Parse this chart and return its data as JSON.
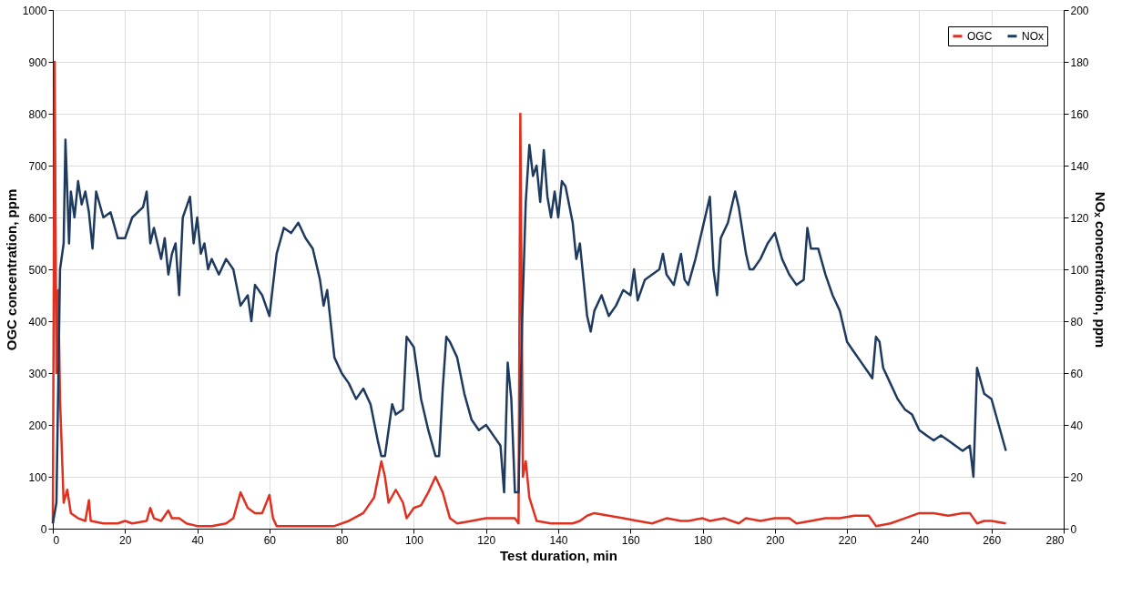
{
  "chart_data": {
    "type": "line",
    "xlabel": "Test duration, min",
    "ylabel": "OGC concentration, ppm",
    "y2label": "NOₓ concentration, ppm",
    "xlim": [
      0,
      280
    ],
    "xticks": [
      0,
      20,
      40,
      60,
      80,
      100,
      120,
      140,
      160,
      180,
      200,
      220,
      240,
      260,
      280
    ],
    "ylim": [
      0,
      1000
    ],
    "yticks": [
      0,
      100,
      200,
      300,
      400,
      500,
      600,
      700,
      800,
      900,
      1000
    ],
    "y2lim": [
      0,
      200
    ],
    "y2ticks": [
      0,
      20,
      40,
      60,
      80,
      100,
      120,
      140,
      160,
      180,
      200
    ],
    "grid": true,
    "legend": "top right",
    "marker": "none",
    "line_style": "solid",
    "series": [
      {
        "name": "OGC",
        "color": "#e03020",
        "x": [
          0,
          0.5,
          1,
          1.5,
          2,
          3,
          4,
          5,
          7,
          9,
          10,
          10.5,
          14,
          18,
          20,
          22,
          26,
          27,
          28,
          30,
          32,
          33,
          35,
          37,
          40,
          44,
          48,
          50,
          52,
          54,
          56,
          58,
          60,
          61,
          62,
          70,
          78,
          82,
          86,
          89,
          91,
          92,
          93,
          95,
          97,
          98,
          100,
          102,
          104,
          106,
          108,
          110,
          112,
          116,
          120,
          124,
          128,
          129,
          129.5,
          130.2,
          131,
          132,
          134,
          138,
          144,
          146,
          148,
          150,
          154,
          158,
          162,
          166,
          170,
          174,
          176,
          180,
          182,
          186,
          190,
          192,
          196,
          200,
          204,
          206,
          210,
          214,
          218,
          222,
          226,
          228,
          232,
          236,
          240,
          244,
          248,
          252,
          254,
          256,
          258,
          260,
          264
        ],
        "values": [
          10,
          900,
          300,
          460,
          250,
          50,
          75,
          30,
          20,
          15,
          55,
          15,
          10,
          10,
          15,
          10,
          15,
          40,
          20,
          15,
          35,
          20,
          20,
          10,
          5,
          5,
          10,
          20,
          70,
          40,
          30,
          30,
          65,
          20,
          5,
          5,
          5,
          15,
          30,
          60,
          130,
          100,
          50,
          75,
          50,
          20,
          40,
          45,
          70,
          100,
          70,
          20,
          10,
          15,
          20,
          20,
          20,
          10,
          800,
          100,
          130,
          60,
          15,
          10,
          10,
          15,
          25,
          30,
          25,
          20,
          15,
          10,
          20,
          15,
          15,
          20,
          15,
          20,
          10,
          20,
          15,
          20,
          20,
          10,
          15,
          20,
          20,
          25,
          25,
          5,
          10,
          20,
          30,
          30,
          25,
          30,
          30,
          10,
          15,
          15,
          10
        ]
      },
      {
        "name": "NOx",
        "color": "#1f3a5f",
        "axis": "y2",
        "x": [
          0,
          1,
          2,
          3,
          3.5,
          4.5,
          5,
          6,
          7,
          8,
          9,
          10,
          11,
          12,
          14,
          16,
          18,
          20,
          22,
          25,
          26,
          27,
          28,
          30,
          31,
          32,
          33,
          34,
          35,
          36,
          37,
          38,
          39,
          40,
          41,
          42,
          43,
          44,
          46,
          48,
          50,
          52,
          54,
          55,
          56,
          58,
          60,
          62,
          64,
          66,
          68,
          70,
          72,
          74,
          75,
          76,
          78,
          80,
          82,
          84,
          86,
          88,
          90,
          91,
          92,
          94,
          95,
          97,
          98,
          100,
          102,
          104,
          106,
          107,
          108,
          109,
          110,
          112,
          114,
          116,
          118,
          120,
          122,
          124,
          125,
          126,
          127,
          128,
          129,
          130,
          131,
          132,
          133,
          134,
          135,
          136,
          137,
          138,
          139,
          140,
          141,
          142,
          144,
          145,
          146,
          147,
          148,
          149,
          150,
          152,
          154,
          156,
          158,
          160,
          161,
          162,
          164,
          166,
          168,
          169,
          170,
          172,
          174,
          175,
          176,
          178,
          180,
          182,
          183,
          184,
          185,
          187,
          189,
          190,
          192,
          193,
          194,
          196,
          198,
          200,
          202,
          204,
          206,
          208,
          209,
          210,
          212,
          214,
          216,
          218,
          220,
          221,
          222,
          224,
          226,
          227,
          228,
          229,
          230,
          232,
          234,
          236,
          238,
          240,
          242,
          244,
          246,
          248,
          250,
          252,
          254,
          255,
          256,
          258,
          260,
          262,
          264
        ],
        "values": [
          2,
          10,
          100,
          110,
          150,
          110,
          130,
          120,
          134,
          125,
          130,
          122,
          108,
          130,
          120,
          122,
          112,
          112,
          120,
          124,
          130,
          110,
          116,
          104,
          112,
          98,
          106,
          110,
          90,
          120,
          124,
          128,
          110,
          120,
          106,
          110,
          100,
          104,
          98,
          104,
          100,
          86,
          90,
          80,
          94,
          90,
          82,
          106,
          116,
          114,
          118,
          112,
          108,
          96,
          86,
          92,
          66,
          60,
          56,
          50,
          54,
          48,
          34,
          28,
          28,
          48,
          44,
          46,
          74,
          70,
          50,
          38,
          28,
          28,
          54,
          74,
          72,
          66,
          52,
          42,
          38,
          40,
          36,
          32,
          14,
          64,
          50,
          14,
          14,
          80,
          126,
          148,
          136,
          140,
          126,
          146,
          128,
          120,
          130,
          120,
          134,
          132,
          118,
          104,
          110,
          96,
          82,
          76,
          84,
          90,
          82,
          86,
          92,
          90,
          100,
          88,
          96,
          98,
          100,
          106,
          98,
          94,
          106,
          96,
          94,
          104,
          116,
          128,
          100,
          90,
          112,
          118,
          130,
          124,
          106,
          100,
          100,
          104,
          110,
          114,
          104,
          98,
          94,
          96,
          116,
          108,
          108,
          98,
          90,
          84,
          72,
          70,
          68,
          64,
          60,
          58,
          74,
          72,
          62,
          56,
          50,
          46,
          44,
          38,
          36,
          34,
          36,
          34,
          32,
          30,
          32,
          20,
          62,
          52,
          50,
          40,
          30
        ]
      }
    ]
  }
}
